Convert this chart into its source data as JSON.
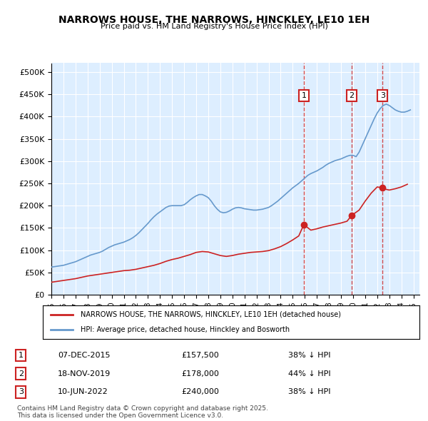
{
  "title": "NARROWS HOUSE, THE NARROWS, HINCKLEY, LE10 1EH",
  "subtitle": "Price paid vs. HM Land Registry's House Price Index (HPI)",
  "ylabel": "",
  "xlabel": "",
  "ylim": [
    0,
    520000
  ],
  "yticks": [
    0,
    50000,
    100000,
    150000,
    200000,
    250000,
    300000,
    350000,
    400000,
    450000,
    500000
  ],
  "ytick_labels": [
    "£0",
    "£50K",
    "£100K",
    "£150K",
    "£200K",
    "£250K",
    "£300K",
    "£350K",
    "£400K",
    "£450K",
    "£500K"
  ],
  "xlim_start": 1995.0,
  "xlim_end": 2025.5,
  "background_color": "#ffffff",
  "plot_bg_color": "#ddeeff",
  "grid_color": "#ffffff",
  "hpi_color": "#6699cc",
  "price_color": "#cc2222",
  "sale_dates": [
    2015.92,
    2019.88,
    2022.44
  ],
  "sale_prices": [
    157500,
    178000,
    240000
  ],
  "sale_labels": [
    "1",
    "2",
    "3"
  ],
  "sale_date_strs": [
    "07-DEC-2015",
    "18-NOV-2019",
    "10-JUN-2022"
  ],
  "sale_price_strs": [
    "£157,500",
    "£178,000",
    "£240,000"
  ],
  "sale_pct_strs": [
    "38% ↓ HPI",
    "44% ↓ HPI",
    "38% ↓ HPI"
  ],
  "legend_label_red": "NARROWS HOUSE, THE NARROWS, HINCKLEY, LE10 1EH (detached house)",
  "legend_label_blue": "HPI: Average price, detached house, Hinckley and Bosworth",
  "footer": "Contains HM Land Registry data © Crown copyright and database right 2025.\nThis data is licensed under the Open Government Licence v3.0.",
  "hpi_x": [
    1995.0,
    1995.25,
    1995.5,
    1995.75,
    1996.0,
    1996.25,
    1996.5,
    1996.75,
    1997.0,
    1997.25,
    1997.5,
    1997.75,
    1998.0,
    1998.25,
    1998.5,
    1998.75,
    1999.0,
    1999.25,
    1999.5,
    1999.75,
    2000.0,
    2000.25,
    2000.5,
    2000.75,
    2001.0,
    2001.25,
    2001.5,
    2001.75,
    2002.0,
    2002.25,
    2002.5,
    2002.75,
    2003.0,
    2003.25,
    2003.5,
    2003.75,
    2004.0,
    2004.25,
    2004.5,
    2004.75,
    2005.0,
    2005.25,
    2005.5,
    2005.75,
    2006.0,
    2006.25,
    2006.5,
    2006.75,
    2007.0,
    2007.25,
    2007.5,
    2007.75,
    2008.0,
    2008.25,
    2008.5,
    2008.75,
    2009.0,
    2009.25,
    2009.5,
    2009.75,
    2010.0,
    2010.25,
    2010.5,
    2010.75,
    2011.0,
    2011.25,
    2011.5,
    2011.75,
    2012.0,
    2012.25,
    2012.5,
    2012.75,
    2013.0,
    2013.25,
    2013.5,
    2013.75,
    2014.0,
    2014.25,
    2014.5,
    2014.75,
    2015.0,
    2015.25,
    2015.5,
    2015.75,
    2016.0,
    2016.25,
    2016.5,
    2016.75,
    2017.0,
    2017.25,
    2017.5,
    2017.75,
    2018.0,
    2018.25,
    2018.5,
    2018.75,
    2019.0,
    2019.25,
    2019.5,
    2019.75,
    2020.0,
    2020.25,
    2020.5,
    2020.75,
    2021.0,
    2021.25,
    2021.5,
    2021.75,
    2022.0,
    2022.25,
    2022.5,
    2022.75,
    2023.0,
    2023.25,
    2023.5,
    2023.75,
    2024.0,
    2024.25,
    2024.5,
    2024.75
  ],
  "hpi_y": [
    62000,
    63000,
    64000,
    65000,
    66000,
    68000,
    70000,
    72000,
    74000,
    77000,
    80000,
    83000,
    86000,
    89000,
    91000,
    93000,
    95000,
    98000,
    102000,
    106000,
    109000,
    112000,
    114000,
    116000,
    118000,
    121000,
    124000,
    128000,
    133000,
    139000,
    146000,
    153000,
    160000,
    168000,
    175000,
    181000,
    186000,
    191000,
    196000,
    199000,
    200000,
    200000,
    200000,
    200000,
    202000,
    207000,
    213000,
    218000,
    222000,
    225000,
    225000,
    222000,
    218000,
    210000,
    200000,
    192000,
    186000,
    184000,
    185000,
    188000,
    192000,
    195000,
    196000,
    195000,
    193000,
    192000,
    191000,
    190000,
    190000,
    191000,
    192000,
    194000,
    196000,
    200000,
    205000,
    210000,
    216000,
    222000,
    228000,
    234000,
    240000,
    245000,
    250000,
    256000,
    262000,
    268000,
    272000,
    275000,
    278000,
    282000,
    286000,
    291000,
    295000,
    298000,
    301000,
    303000,
    305000,
    308000,
    311000,
    313000,
    313000,
    310000,
    320000,
    335000,
    350000,
    365000,
    380000,
    395000,
    408000,
    418000,
    425000,
    428000,
    425000,
    420000,
    415000,
    412000,
    410000,
    410000,
    412000,
    415000
  ],
  "price_x": [
    1995.0,
    1995.5,
    1996.0,
    1996.5,
    1997.0,
    1997.5,
    1998.0,
    1998.5,
    1999.0,
    1999.5,
    2000.0,
    2000.5,
    2001.0,
    2001.5,
    2002.0,
    2002.5,
    2003.0,
    2003.5,
    2004.0,
    2004.5,
    2005.0,
    2005.5,
    2006.0,
    2006.5,
    2007.0,
    2007.5,
    2008.0,
    2008.5,
    2009.0,
    2009.5,
    2010.0,
    2010.5,
    2011.0,
    2011.5,
    2012.0,
    2012.5,
    2013.0,
    2013.5,
    2014.0,
    2014.5,
    2015.0,
    2015.5,
    2015.92,
    2016.5,
    2017.0,
    2017.5,
    2018.0,
    2018.5,
    2019.0,
    2019.5,
    2019.88,
    2020.5,
    2021.0,
    2021.5,
    2022.0,
    2022.44,
    2022.5,
    2023.0,
    2023.5,
    2024.0,
    2024.5
  ],
  "price_y": [
    28000,
    30000,
    32000,
    34000,
    36000,
    39000,
    42000,
    44000,
    46000,
    48000,
    50000,
    52000,
    54000,
    55000,
    57000,
    60000,
    63000,
    66000,
    70000,
    75000,
    79000,
    82000,
    86000,
    90000,
    95000,
    97000,
    96000,
    92000,
    88000,
    86000,
    88000,
    91000,
    93000,
    95000,
    96000,
    97000,
    99000,
    103000,
    108000,
    115000,
    123000,
    132000,
    157500,
    145000,
    148000,
    152000,
    155000,
    158000,
    161000,
    165000,
    178000,
    190000,
    210000,
    228000,
    242000,
    240000,
    238000,
    235000,
    238000,
    242000,
    248000
  ]
}
